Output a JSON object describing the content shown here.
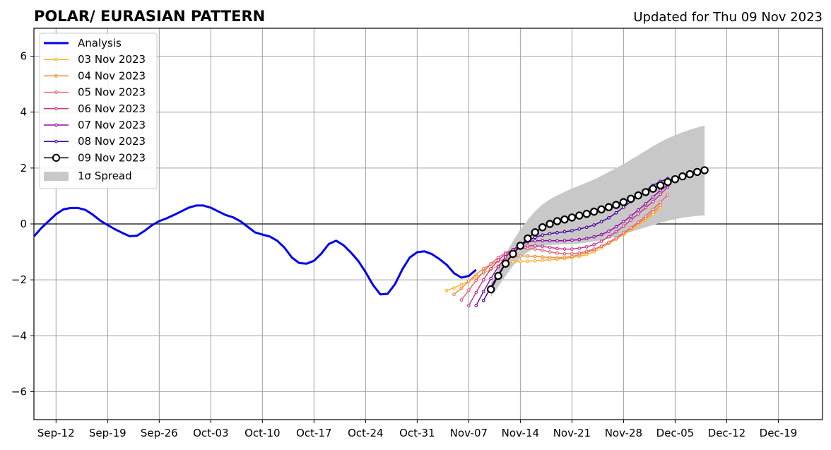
{
  "chart_data": {
    "type": "line",
    "title": "POLAR/ EURASIAN  PATTERN",
    "subtitle": "Updated for Thu 09 Nov 2023",
    "xlabel": "",
    "ylabel": "",
    "xlim": [
      "2023-09-09",
      "2023-12-25"
    ],
    "ylim": [
      -7,
      7
    ],
    "x_ticks": [
      "Sep-12",
      "Sep-19",
      "Sep-26",
      "Oct-03",
      "Oct-10",
      "Oct-17",
      "Oct-24",
      "Oct-31",
      "Nov-07",
      "Nov-14",
      "Nov-21",
      "Nov-28",
      "Dec-05",
      "Dec-12",
      "Dec-19"
    ],
    "x_tick_dates": [
      "2023-09-12",
      "2023-09-19",
      "2023-09-26",
      "2023-10-03",
      "2023-10-10",
      "2023-10-17",
      "2023-10-24",
      "2023-10-31",
      "2023-11-07",
      "2023-11-14",
      "2023-11-21",
      "2023-11-28",
      "2023-12-05",
      "2023-12-12",
      "2023-12-19"
    ],
    "y_ticks": [
      -6,
      -4,
      -2,
      0,
      2,
      4,
      6
    ],
    "y_tick_labels": [
      "−6",
      "−4",
      "−2",
      "0",
      "2",
      "4",
      "6"
    ],
    "grid": true,
    "legend_position": "top-left",
    "legend": [
      "Analysis",
      "03 Nov 2023",
      "04 Nov 2023",
      "05 Nov 2023",
      "06 Nov 2023",
      "07 Nov 2023",
      "08 Nov 2023",
      "09 Nov 2023",
      "1σ Spread"
    ],
    "analysis": {
      "name": "Analysis",
      "color": "#0000ee",
      "start": "2023-09-09",
      "values": [
        -0.45,
        -0.15,
        0.1,
        0.35,
        0.52,
        0.57,
        0.57,
        0.5,
        0.33,
        0.12,
        -0.04,
        -0.19,
        -0.32,
        -0.44,
        -0.42,
        -0.25,
        -0.05,
        0.1,
        0.2,
        0.32,
        0.45,
        0.58,
        0.66,
        0.66,
        0.58,
        0.45,
        0.32,
        0.24,
        0.1,
        -0.1,
        -0.3,
        -0.38,
        -0.45,
        -0.6,
        -0.85,
        -1.2,
        -1.4,
        -1.42,
        -1.32,
        -1.06,
        -0.72,
        -0.6,
        -0.76,
        -1.02,
        -1.32,
        -1.72,
        -2.18,
        -2.52,
        -2.5,
        -2.15,
        -1.62,
        -1.2,
        -1.01,
        -0.98,
        -1.08,
        -1.25,
        -1.46,
        -1.76,
        -1.92,
        -1.86,
        -1.64
      ]
    },
    "forecasts": [
      {
        "name": "03 Nov 2023",
        "color": "#fbb32e",
        "start": "2023-11-04",
        "values": [
          -2.38,
          -2.29,
          -2.17,
          -2.04,
          -1.9,
          -1.76,
          -1.62,
          -1.5,
          -1.42,
          -1.36,
          -1.34,
          -1.33,
          -1.32,
          -1.3,
          -1.28,
          -1.26,
          -1.24,
          -1.2,
          -1.16,
          -1.1,
          -1.0,
          -0.86,
          -0.7,
          -0.55,
          -0.38,
          -0.21,
          -0.04,
          0.14,
          0.34,
          0.58
        ]
      },
      {
        "name": "04 Nov 2023",
        "color": "#f58a3c",
        "start": "2023-11-05",
        "values": [
          -2.52,
          -2.3,
          -2.05,
          -1.8,
          -1.6,
          -1.44,
          -1.33,
          -1.24,
          -1.18,
          -1.15,
          -1.15,
          -1.16,
          -1.18,
          -1.2,
          -1.21,
          -1.2,
          -1.16,
          -1.1,
          -1.02,
          -0.92,
          -0.8,
          -0.66,
          -0.5,
          -0.34,
          -0.16,
          0.02,
          0.2,
          0.42,
          0.66
        ]
      },
      {
        "name": "05 Nov 2023",
        "color": "#e46474",
        "start": "2023-11-06",
        "values": [
          -2.72,
          -2.37,
          -2.02,
          -1.71,
          -1.43,
          -1.2,
          -1.03,
          -0.92,
          -0.88,
          -0.88,
          -0.9,
          -0.94,
          -1.0,
          -1.04,
          -1.07,
          -1.07,
          -1.04,
          -0.98,
          -0.9,
          -0.8,
          -0.66,
          -0.5,
          -0.32,
          -0.14,
          0.06,
          0.28,
          0.52,
          0.78,
          1.04
        ]
      },
      {
        "name": "06 Nov 2023",
        "color": "#c7388c",
        "start": "2023-11-07",
        "values": [
          -2.92,
          -2.45,
          -2.0,
          -1.6,
          -1.3,
          -1.08,
          -0.92,
          -0.82,
          -0.78,
          -0.78,
          -0.8,
          -0.84,
          -0.88,
          -0.9,
          -0.9,
          -0.87,
          -0.82,
          -0.74,
          -0.62,
          -0.46,
          -0.28,
          -0.08,
          0.14,
          0.36,
          0.58,
          0.8,
          1.06,
          1.32
        ]
      },
      {
        "name": "07 Nov 2023",
        "color": "#8e0ea4",
        "start": "2023-11-08",
        "values": [
          -2.92,
          -2.42,
          -1.95,
          -1.53,
          -1.18,
          -0.92,
          -0.74,
          -0.64,
          -0.6,
          -0.6,
          -0.6,
          -0.6,
          -0.6,
          -0.58,
          -0.56,
          -0.52,
          -0.46,
          -0.38,
          -0.26,
          -0.1,
          0.08,
          0.28,
          0.5,
          0.72,
          0.96,
          1.2,
          1.38
        ]
      },
      {
        "name": "08 Nov 2023",
        "color": "#4a0499",
        "start": "2023-11-09",
        "values": [
          -2.74,
          -2.26,
          -1.8,
          -1.4,
          -1.06,
          -0.8,
          -0.6,
          -0.48,
          -0.4,
          -0.35,
          -0.31,
          -0.28,
          -0.24,
          -0.18,
          -0.12,
          -0.04,
          0.08,
          0.22,
          0.4,
          0.6,
          0.8,
          1.0,
          1.2,
          1.38,
          1.52,
          1.62
        ]
      },
      {
        "name": "09 Nov 2023",
        "color": "#000000",
        "start": "2023-11-10",
        "values": [
          -2.34,
          -1.86,
          -1.42,
          -1.07,
          -0.78,
          -0.52,
          -0.3,
          -0.12,
          0.0,
          0.1,
          0.16,
          0.23,
          0.3,
          0.36,
          0.44,
          0.52,
          0.6,
          0.68,
          0.78,
          0.9,
          1.02,
          1.14,
          1.26,
          1.38,
          1.5,
          1.6,
          1.7,
          1.78,
          1.86,
          1.92
        ]
      }
    ],
    "spread": {
      "name": "1σ Spread",
      "color": "#c8c8c8",
      "start": "2023-11-10",
      "upper": [
        -2.1,
        -1.6,
        -1.08,
        -0.62,
        -0.2,
        0.15,
        0.45,
        0.7,
        0.88,
        1.02,
        1.15,
        1.26,
        1.37,
        1.48,
        1.59,
        1.72,
        1.86,
        2.0,
        2.14,
        2.3,
        2.46,
        2.62,
        2.78,
        2.93,
        3.06,
        3.18,
        3.28,
        3.37,
        3.45,
        3.52
      ],
      "lower": [
        -2.62,
        -2.24,
        -1.86,
        -1.5,
        -1.22,
        -1.0,
        -0.86,
        -0.78,
        -0.75,
        -0.74,
        -0.73,
        -0.72,
        -0.7,
        -0.67,
        -0.63,
        -0.58,
        -0.52,
        -0.45,
        -0.37,
        -0.28,
        -0.2,
        -0.12,
        -0.04,
        0.04,
        0.11,
        0.17,
        0.22,
        0.26,
        0.29,
        0.3
      ]
    }
  }
}
